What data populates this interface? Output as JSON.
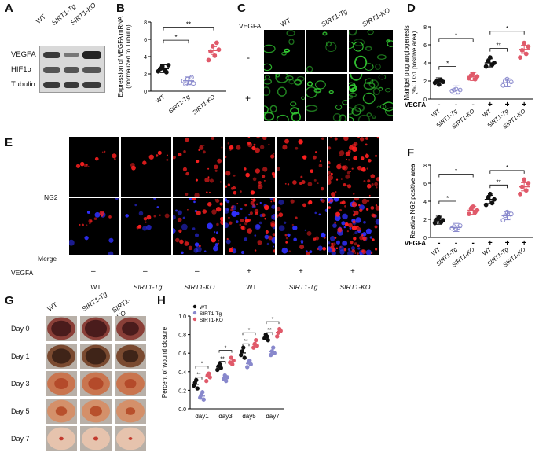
{
  "panel_labels": {
    "A": "A",
    "B": "B",
    "C": "C",
    "D": "D",
    "E": "E",
    "F": "F",
    "G": "G",
    "H": "H"
  },
  "panelA": {
    "lanes": [
      "WT",
      "SIRT1-Tg",
      "SIRT1-KO"
    ],
    "rows": [
      "VEGFA",
      "HIF1α",
      "Tubulin"
    ]
  },
  "colors": {
    "wt": "#111111",
    "tg": "#8888cc",
    "ko": "#e05a6a",
    "green": "#33cc33",
    "red": "#ff2020",
    "blue": "#3030ff"
  },
  "panelC": {
    "header": "VEGFA",
    "cols": [
      "WT",
      "SIRT1-Tg",
      "SIRT1-KO"
    ],
    "rows": [
      "-",
      "+"
    ]
  },
  "panelE": {
    "row_labels": [
      "NG2",
      "Merge"
    ],
    "vegfa_label": "VEGFA",
    "vegfa_signs": [
      "–",
      "–",
      "–",
      "+",
      "+",
      "+"
    ],
    "groups": [
      "WT",
      "SIRT1-Tg",
      "SIRT1-KO",
      "WT",
      "SIRT1-Tg",
      "SIRT1-KO"
    ]
  },
  "panelG": {
    "cols": [
      "WT",
      "SIRT1-Tg",
      "SIRT1-KO"
    ],
    "rows": [
      "Day 0",
      "Day 1",
      "Day 3",
      "Day 5",
      "Day 7"
    ]
  },
  "chart_data": [
    {
      "panel": "B",
      "type": "scatter",
      "ylabel": "Expression of VEGFA mRNA (normalized to Tubulin)",
      "categories": [
        "WT",
        "SIRT1-Tg",
        "SIRT1-KO"
      ],
      "ylim": [
        0,
        8
      ],
      "yticks": [
        0,
        2,
        4,
        6,
        8
      ],
      "series": [
        {
          "name": "WT",
          "values": [
            2.3,
            2.6,
            2.9,
            2.5,
            2.2,
            3.0
          ],
          "mean": 2.6
        },
        {
          "name": "SIRT1-Tg",
          "values": [
            1.2,
            0.8,
            1.4,
            1.0,
            1.6,
            0.9
          ],
          "mean": 1.2
        },
        {
          "name": "SIRT1-KO",
          "values": [
            3.6,
            4.6,
            5.2,
            4.1,
            5.6,
            4.8
          ],
          "mean": 4.7
        }
      ],
      "annotations": [
        "*",
        "**"
      ]
    },
    {
      "panel": "D",
      "type": "scatter",
      "ylabel": "Matrigel plug angiogenesis (%CD31 positive area)",
      "categories": [
        "WT",
        "SIRT1-Tg",
        "SIRT1-KO",
        "WT",
        "SIRT1-Tg",
        "SIRT1-KO"
      ],
      "vegfa_label": "VEGFA",
      "vegfa_signs": [
        "-",
        "-",
        "-",
        "+",
        "+",
        "+"
      ],
      "ylim": [
        0,
        8
      ],
      "yticks": [
        0,
        2,
        4,
        6,
        8
      ],
      "series": [
        {
          "name": "WT -",
          "values": [
            1.8,
            2.0,
            1.6,
            2.1,
            1.9
          ],
          "mean": 1.9
        },
        {
          "name": "SIRT1-Tg -",
          "values": [
            0.9,
            1.0,
            1.1,
            0.8,
            1.0
          ],
          "mean": 1.0
        },
        {
          "name": "SIRT1-KO -",
          "values": [
            2.3,
            2.6,
            2.8,
            2.2,
            2.5
          ],
          "mean": 2.5
        },
        {
          "name": "WT +",
          "values": [
            3.6,
            4.2,
            4.6,
            3.8,
            4.0
          ],
          "mean": 4.0
        },
        {
          "name": "SIRT1-Tg +",
          "values": [
            1.5,
            2.0,
            2.2,
            1.6,
            1.9
          ],
          "mean": 1.8
        },
        {
          "name": "SIRT1-KO +",
          "values": [
            4.6,
            5.4,
            6.2,
            5.0,
            5.8
          ],
          "mean": 5.5
        }
      ],
      "annotations": [
        "*",
        "*",
        "*",
        "**"
      ]
    },
    {
      "panel": "F",
      "type": "scatter",
      "ylabel": "Relative NG2 positive area",
      "categories": [
        "WT",
        "SIRT1-Tg",
        "SIRT1-KO",
        "WT",
        "SIRT1-Tg",
        "SIRT1-KO"
      ],
      "vegfa_label": "VEGFA",
      "vegfa_signs": [
        "-",
        "-",
        "-",
        "+",
        "+",
        "+"
      ],
      "ylim": [
        0,
        8
      ],
      "yticks": [
        0,
        2,
        4,
        6,
        8
      ],
      "series": [
        {
          "name": "WT -",
          "values": [
            1.6,
            2.0,
            2.2,
            1.7,
            1.9
          ],
          "mean": 1.9
        },
        {
          "name": "SIRT1-Tg -",
          "values": [
            1.0,
            1.2,
            0.9,
            1.1,
            1.3
          ],
          "mean": 1.1
        },
        {
          "name": "SIRT1-KO -",
          "values": [
            2.6,
            3.2,
            3.4,
            2.8,
            3.0
          ],
          "mean": 3.0
        },
        {
          "name": "WT +",
          "values": [
            3.6,
            4.4,
            4.8,
            3.8,
            4.2
          ],
          "mean": 4.2
        },
        {
          "name": "SIRT1-Tg +",
          "values": [
            1.9,
            2.4,
            2.8,
            2.2,
            2.6
          ],
          "mean": 2.4
        },
        {
          "name": "SIRT1-KO +",
          "values": [
            4.8,
            5.6,
            6.4,
            5.2,
            6.0
          ],
          "mean": 5.6
        }
      ],
      "annotations": [
        "*",
        "*",
        "*",
        "**"
      ]
    },
    {
      "panel": "H",
      "type": "scatter",
      "ylabel": "Percent of wound closure",
      "categories": [
        "day1",
        "day3",
        "day5",
        "day7"
      ],
      "ylim": [
        0,
        1.0
      ],
      "yticks": [
        0,
        0.2,
        0.4,
        0.6,
        0.8,
        1.0
      ],
      "legend": [
        "WT",
        "SIRT1-Tg",
        "SIRT1-KO"
      ],
      "series": [
        {
          "name": "WT",
          "values": [
            [
              0.25,
              0.28,
              0.31,
              0.22
            ],
            [
              0.42,
              0.46,
              0.48,
              0.44
            ],
            [
              0.58,
              0.62,
              0.66,
              0.55
            ],
            [
              0.76,
              0.8,
              0.78,
              0.74
            ]
          ]
        },
        {
          "name": "SIRT1-Tg",
          "values": [
            [
              0.12,
              0.15,
              0.18,
              0.1
            ],
            [
              0.32,
              0.36,
              0.3,
              0.34
            ],
            [
              0.45,
              0.5,
              0.52,
              0.48
            ],
            [
              0.58,
              0.62,
              0.66,
              0.6
            ]
          ]
        },
        {
          "name": "SIRT1-KO",
          "values": [
            [
              0.3,
              0.36,
              0.38,
              0.34
            ],
            [
              0.5,
              0.55,
              0.48,
              0.52
            ],
            [
              0.66,
              0.7,
              0.74,
              0.68
            ],
            [
              0.78,
              0.82,
              0.86,
              0.84
            ]
          ]
        }
      ],
      "annotations": [
        "*",
        "**",
        "*",
        "**",
        "*",
        "**",
        "*",
        "**"
      ]
    }
  ]
}
